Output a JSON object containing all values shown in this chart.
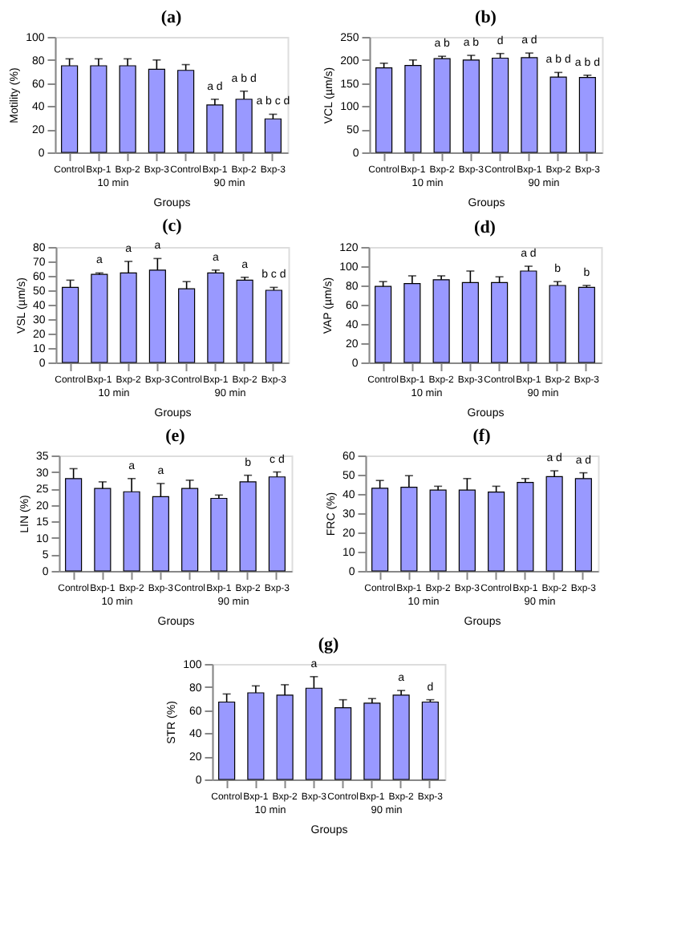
{
  "chart_data": [
    {
      "type": "bar",
      "title": "(a)",
      "xlabel": "Groups",
      "ylabel": "Motility (%)",
      "categories": [
        "Control",
        "Bxp-1",
        "Bxp-2",
        "Bxp-3",
        "Control",
        "Bxp-1",
        "Bxp-2",
        "Bxp-3"
      ],
      "values": [
        75,
        75,
        75,
        72,
        71,
        41,
        46,
        29
      ],
      "errors": [
        6,
        6,
        6,
        8,
        5,
        5,
        7,
        4
      ],
      "value_labels": [
        null,
        null,
        null,
        null,
        null,
        "a d",
        "a b d",
        "a b c d"
      ],
      "color": "#9999ff",
      "ylim": [
        0,
        100
      ],
      "yticks": [
        0,
        20,
        40,
        60,
        80,
        100
      ],
      "annotations": [
        "10 min",
        "90 min"
      ],
      "grid": false
    },
    {
      "type": "bar",
      "title": "(b)",
      "xlabel": "Groups",
      "ylabel": "VCL (µm/s)",
      "categories": [
        "Control",
        "Bxp-1",
        "Bxp-2",
        "Bxp-3",
        "Control",
        "Bxp-1",
        "Bxp-2",
        "Bxp-3"
      ],
      "values": [
        183,
        188,
        203,
        200,
        204,
        205,
        163,
        162
      ],
      "errors": [
        10,
        12,
        5,
        10,
        10,
        10,
        10,
        5
      ],
      "value_labels": [
        null,
        null,
        "a b",
        "a b",
        "d",
        "a d",
        "a b d",
        "a b d"
      ],
      "color": "#9999ff",
      "ylim": [
        0,
        250
      ],
      "yticks": [
        0,
        50,
        100,
        150,
        200,
        250
      ],
      "annotations": [
        "10 min",
        "90 min"
      ],
      "grid": false
    },
    {
      "type": "bar",
      "title": "(c)",
      "xlabel": "Groups",
      "ylabel": "VSL (µm/s)",
      "categories": [
        "Control",
        "Bxp-1",
        "Bxp-2",
        "Bxp-3",
        "Control",
        "Bxp-1",
        "Bxp-2",
        "Bxp-3"
      ],
      "values": [
        52,
        61,
        62,
        64,
        51,
        62,
        57,
        50
      ],
      "errors": [
        5,
        1,
        8,
        8,
        5,
        2,
        2,
        2
      ],
      "value_labels": [
        null,
        "a",
        "a",
        "a",
        null,
        "a",
        "a",
        "b c d"
      ],
      "color": "#9999ff",
      "ylim": [
        0,
        80
      ],
      "yticks": [
        0,
        10,
        20,
        30,
        40,
        50,
        60,
        70,
        80
      ],
      "annotations": [
        "10 min",
        "90 min"
      ],
      "grid": false
    },
    {
      "type": "bar",
      "title": "(d)",
      "xlabel": "Groups",
      "ylabel": "VAP (µm/s)",
      "categories": [
        "Control",
        "Bxp-1",
        "Bxp-2",
        "Bxp-3",
        "Control",
        "Bxp-1",
        "Bxp-2",
        "Bxp-3"
      ],
      "values": [
        79,
        82,
        86,
        83,
        83,
        95,
        80,
        78
      ],
      "errors": [
        5,
        8,
        4,
        12,
        6,
        5,
        4,
        2
      ],
      "value_labels": [
        null,
        null,
        null,
        null,
        null,
        "a d",
        "b",
        "b"
      ],
      "color": "#9999ff",
      "ylim": [
        0,
        120
      ],
      "yticks": [
        0,
        20,
        40,
        60,
        80,
        100,
        120
      ],
      "annotations": [
        "10 min",
        "90 min"
      ],
      "grid": false
    },
    {
      "type": "bar",
      "title": "(e)",
      "xlabel": "Groups",
      "ylabel": "LIN (%)",
      "categories": [
        "Control",
        "Bxp-1",
        "Bxp-2",
        "Bxp-3",
        "Control",
        "Bxp-1",
        "Bxp-2",
        "Bxp-3"
      ],
      "values": [
        28,
        25,
        24,
        22.5,
        25,
        22,
        27,
        28.5
      ],
      "errors": [
        3,
        2,
        4,
        4,
        2.5,
        1,
        2,
        1.5
      ],
      "value_labels": [
        null,
        null,
        "a",
        "a",
        null,
        null,
        "b",
        "c d"
      ],
      "color": "#9999ff",
      "ylim": [
        0,
        35
      ],
      "yticks": [
        0,
        5,
        10,
        15,
        20,
        25,
        30,
        35
      ],
      "annotations": [
        "10 min",
        "90 min"
      ],
      "grid": false
    },
    {
      "type": "bar",
      "title": "(f)",
      "xlabel": "Groups",
      "ylabel": "FRC (%)",
      "categories": [
        "Control",
        "Bxp-1",
        "Bxp-2",
        "Bxp-3",
        "Control",
        "Bxp-1",
        "Bxp-2",
        "Bxp-3"
      ],
      "values": [
        43,
        43.5,
        42,
        42,
        41,
        46,
        49,
        48
      ],
      "errors": [
        4,
        6,
        2,
        6,
        3,
        2,
        3,
        3
      ],
      "value_labels": [
        null,
        null,
        null,
        null,
        null,
        null,
        "a d",
        "a d"
      ],
      "color": "#9999ff",
      "ylim": [
        0,
        60
      ],
      "yticks": [
        0,
        10,
        20,
        30,
        40,
        50,
        60
      ],
      "annotations": [
        "10 min",
        "90 min"
      ],
      "grid": false
    },
    {
      "type": "bar",
      "title": "(g)",
      "xlabel": "Groups",
      "ylabel": "STR (%)",
      "categories": [
        "Control",
        "Bxp-1",
        "Bxp-2",
        "Bxp-3",
        "Control",
        "Bxp-1",
        "Bxp-2",
        "Bxp-3"
      ],
      "values": [
        67,
        75,
        73,
        79,
        62,
        66,
        73,
        67
      ],
      "errors": [
        7,
        6,
        9,
        10,
        7,
        4,
        4,
        2
      ],
      "value_labels": [
        null,
        null,
        null,
        "a",
        null,
        null,
        "a",
        "d"
      ],
      "color": "#9999ff",
      "ylim": [
        0,
        100
      ],
      "yticks": [
        0,
        20,
        40,
        60,
        80,
        100
      ],
      "annotations": [
        "10 min",
        "90 min"
      ],
      "grid": false
    }
  ]
}
